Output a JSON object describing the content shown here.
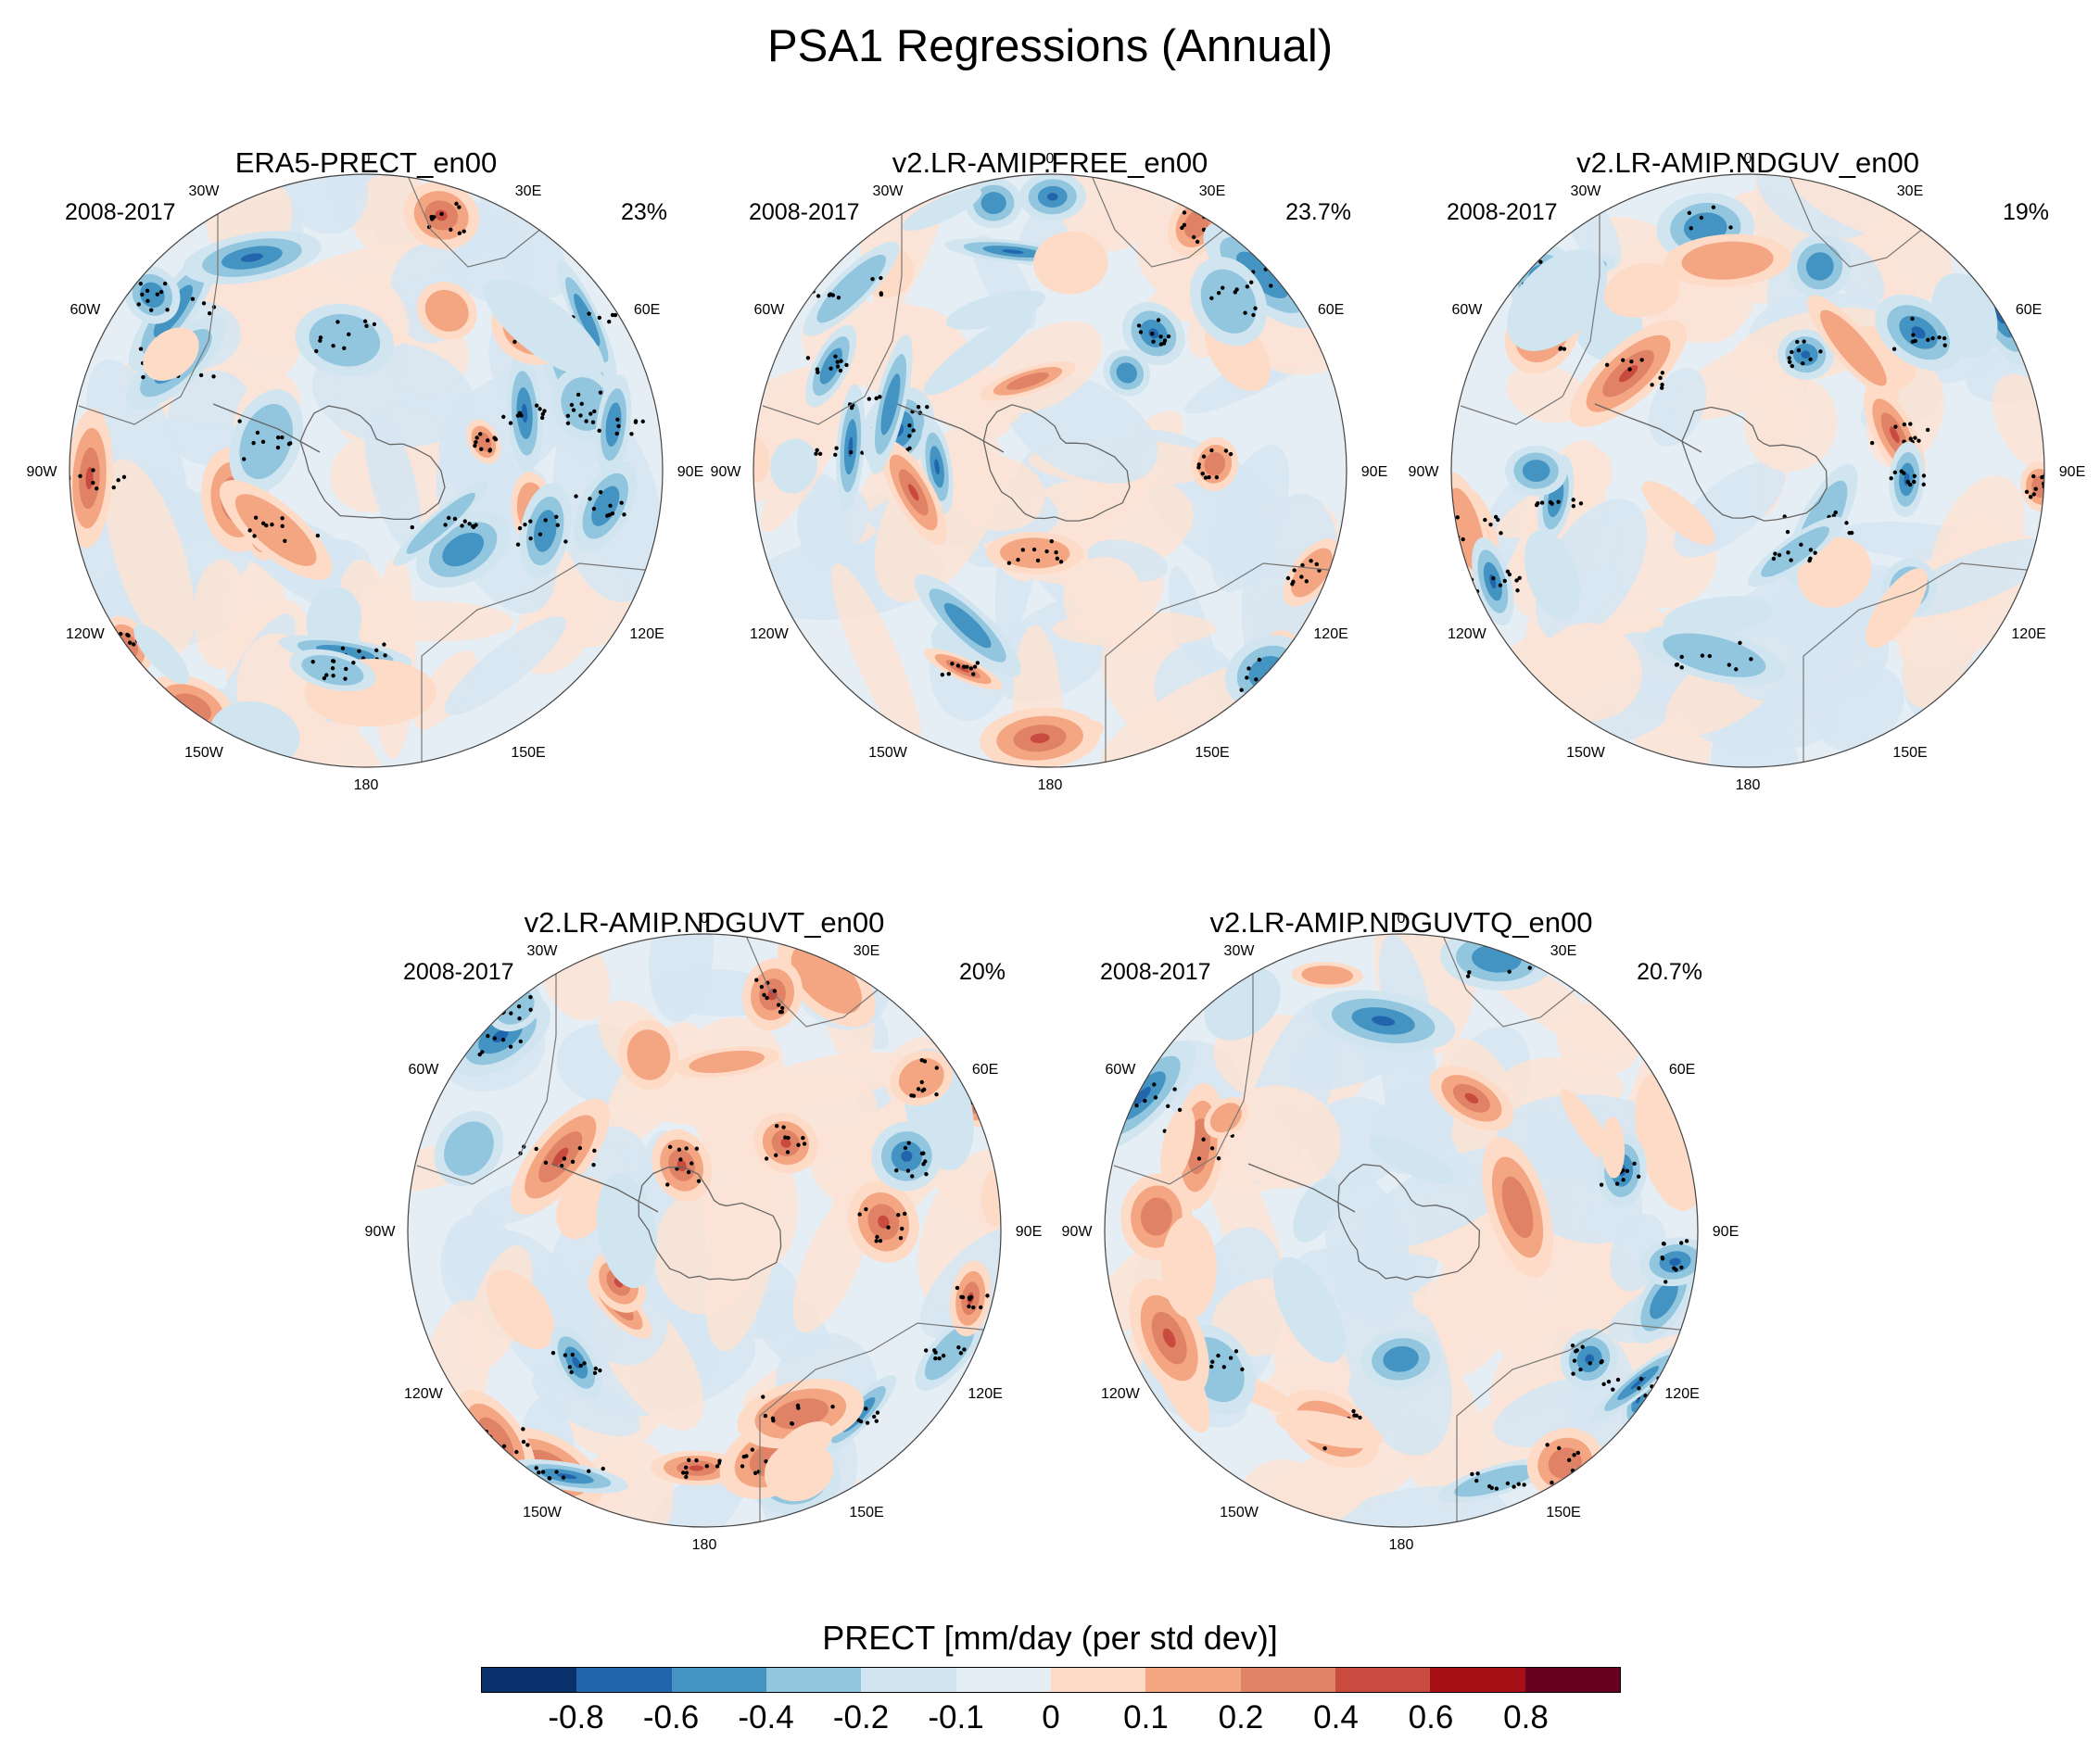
{
  "figure": {
    "title": "PSA1 Regressions (Annual)",
    "colorbar_title": "PRECT [mm/day (per std dev)]",
    "colorbar_labels": [
      "-0.8",
      "-0.6",
      "-0.4",
      "-0.2",
      "-0.1",
      "0",
      "0.1",
      "0.2",
      "0.4",
      "0.6",
      "0.8"
    ],
    "colorbar_colors": [
      "#08306b",
      "#2166ac",
      "#4393c3",
      "#92c5de",
      "#d1e5f0",
      "#e6eef5",
      "#fddbc7",
      "#f4a582",
      "#e08266",
      "#c94a3e",
      "#a50f15",
      "#67001f"
    ],
    "longitude_labels": [
      "0",
      "30E",
      "60E",
      "90E",
      "120E",
      "150E",
      "180",
      "150W",
      "120W",
      "90W",
      "60W",
      "30W"
    ]
  },
  "panels": [
    {
      "title": "ERA5-PRECT_en00",
      "period": "2008-2017",
      "percent": "23%"
    },
    {
      "title": "v2.LR-AMIP.FREE_en00",
      "period": "2008-2017",
      "percent": "23.7%"
    },
    {
      "title": "v2.LR-AMIP.NDGUV_en00",
      "period": "2008-2017",
      "percent": "19%"
    },
    {
      "title": "v2.LR-AMIP.NDGUVT_en00",
      "period": "2008-2017",
      "percent": "20%"
    },
    {
      "title": "v2.LR-AMIP.NDGUVTQ_en00",
      "period": "2008-2017",
      "percent": "20.7%"
    }
  ]
}
